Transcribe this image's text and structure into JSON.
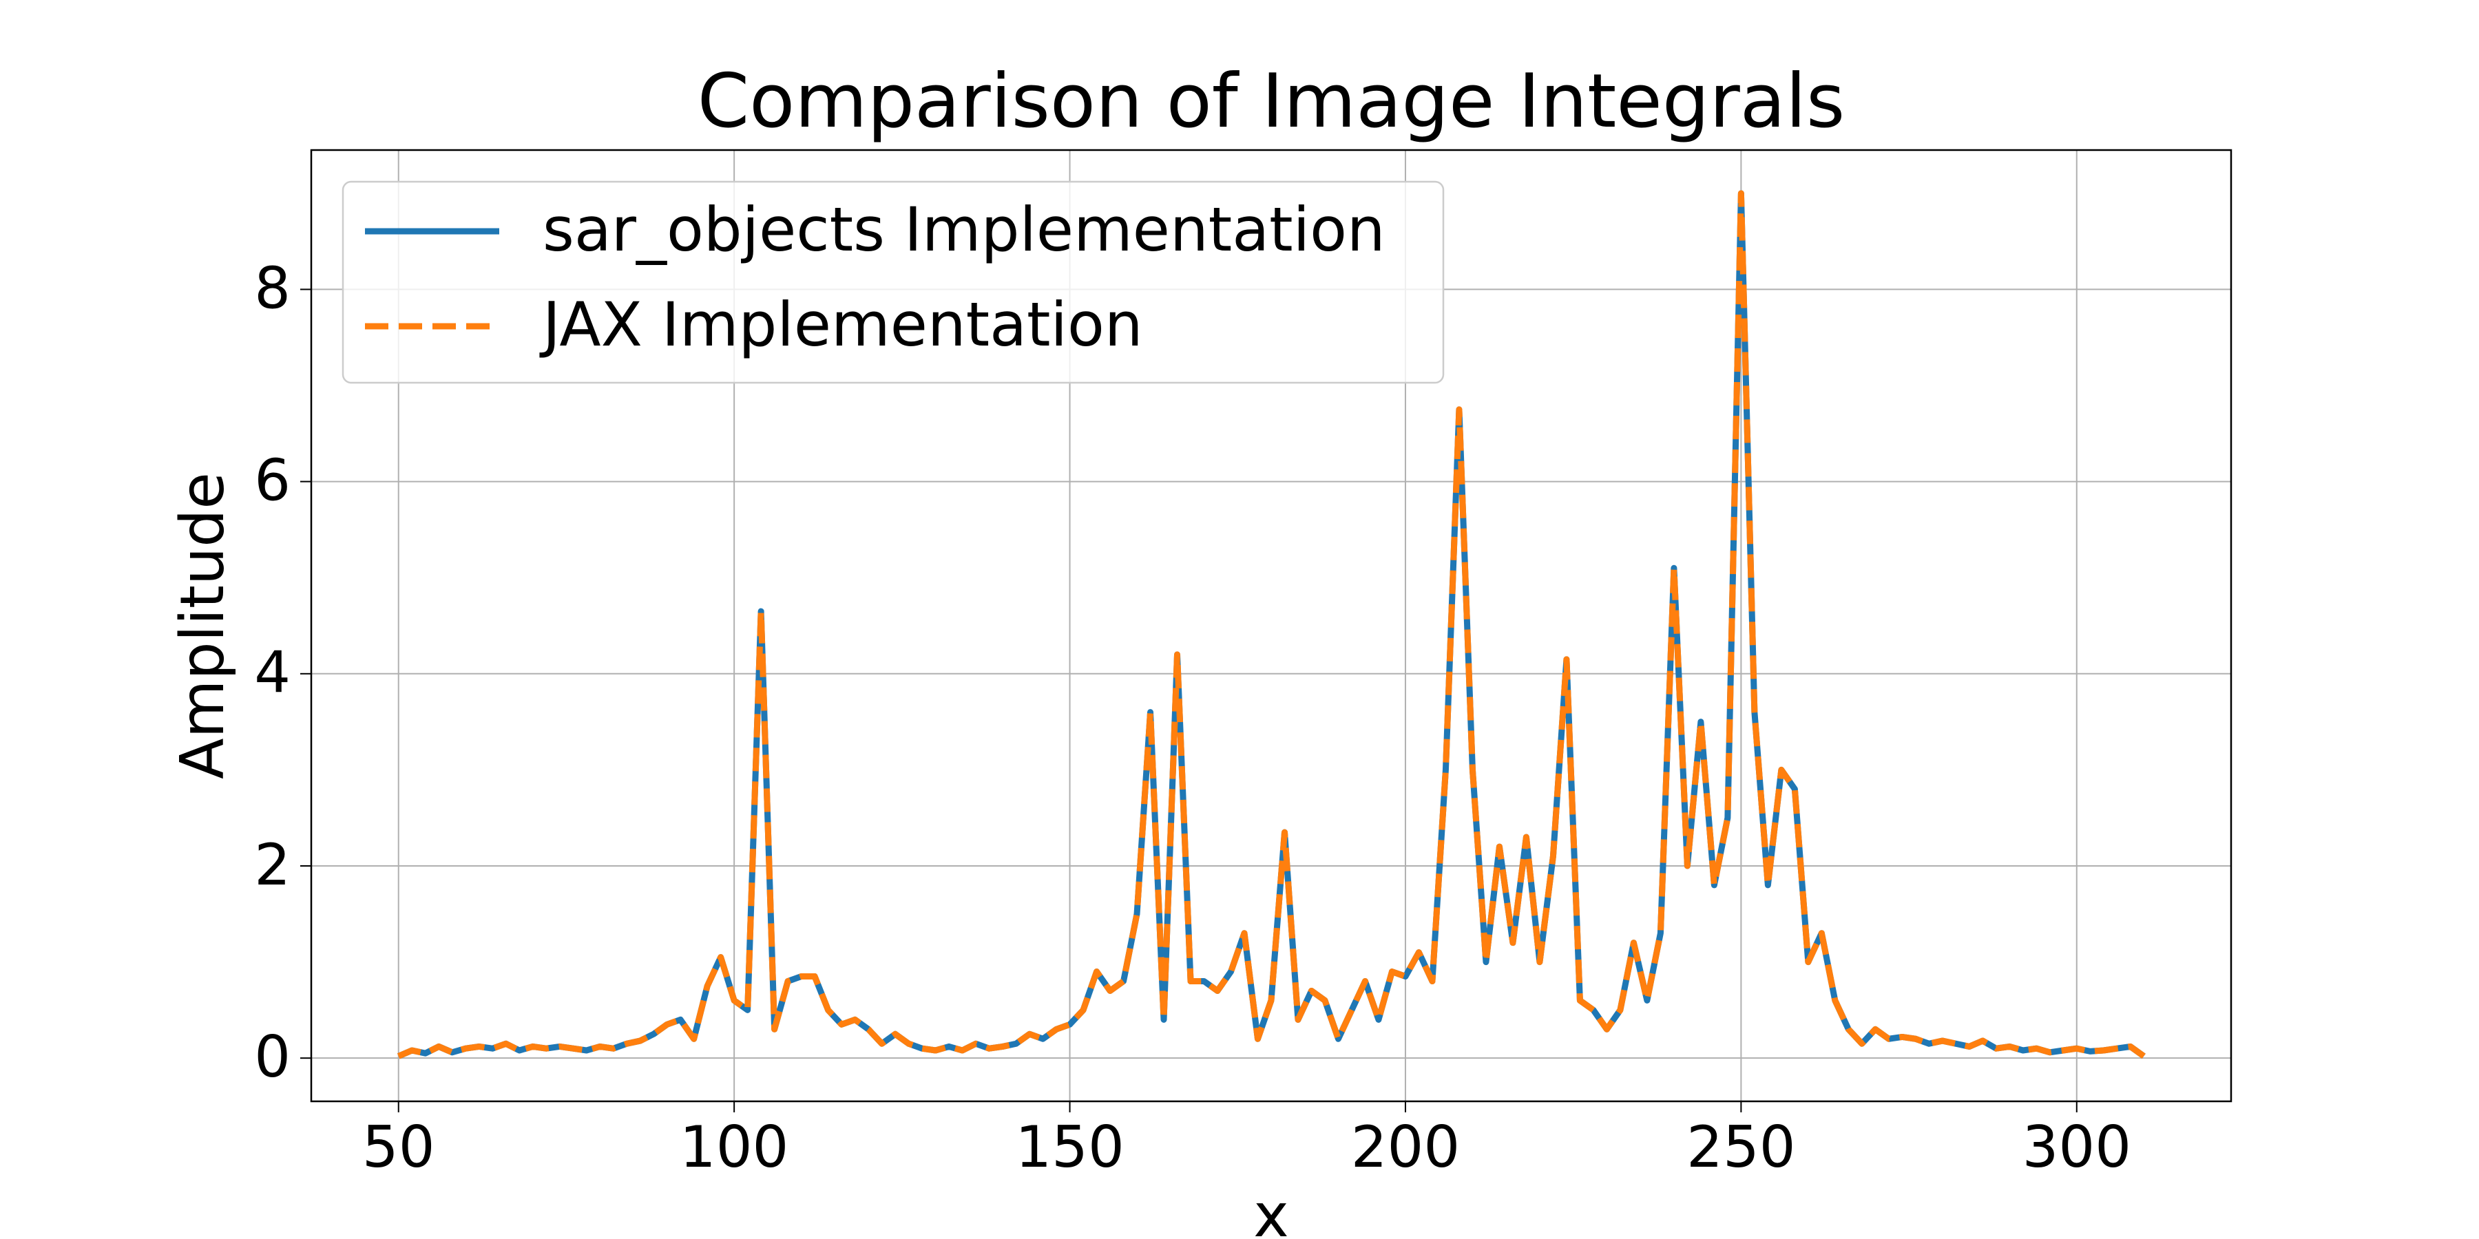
{
  "chart_data": {
    "type": "line",
    "title": "Comparison of Image Integrals",
    "xlabel": "x",
    "ylabel": "Amplitude",
    "x": [
      50,
      52,
      54,
      56,
      58,
      60,
      62,
      64,
      66,
      68,
      70,
      72,
      74,
      76,
      78,
      80,
      82,
      84,
      86,
      88,
      90,
      92,
      94,
      96,
      98,
      100,
      102,
      104,
      106,
      108,
      110,
      112,
      114,
      116,
      118,
      120,
      122,
      124,
      126,
      128,
      130,
      132,
      134,
      136,
      138,
      140,
      142,
      144,
      146,
      148,
      150,
      152,
      154,
      156,
      158,
      160,
      162,
      164,
      166,
      168,
      170,
      172,
      174,
      176,
      178,
      180,
      182,
      184,
      186,
      188,
      190,
      192,
      194,
      196,
      198,
      200,
      202,
      204,
      206,
      208,
      210,
      212,
      214,
      216,
      218,
      220,
      222,
      224,
      226,
      228,
      230,
      232,
      234,
      236,
      238,
      240,
      242,
      244,
      246,
      248,
      250,
      252,
      254,
      256,
      258,
      260,
      262,
      264,
      266,
      268,
      270,
      272,
      274,
      276,
      278,
      280,
      282,
      284,
      286,
      288,
      290,
      292,
      294,
      296,
      298,
      300,
      302,
      304,
      306,
      308,
      310
    ],
    "series": [
      {
        "name": "sar_objects Implementation",
        "color": "#1f77b4",
        "dashed": false,
        "values": [
          0.02,
          0.08,
          0.05,
          0.12,
          0.06,
          0.1,
          0.12,
          0.1,
          0.15,
          0.08,
          0.12,
          0.1,
          0.12,
          0.1,
          0.08,
          0.12,
          0.1,
          0.15,
          0.18,
          0.25,
          0.35,
          0.4,
          0.2,
          0.75,
          1.05,
          0.6,
          0.5,
          4.65,
          0.3,
          0.8,
          0.85,
          0.85,
          0.5,
          0.35,
          0.4,
          0.3,
          0.15,
          0.25,
          0.15,
          0.1,
          0.08,
          0.12,
          0.08,
          0.15,
          0.1,
          0.12,
          0.15,
          0.25,
          0.2,
          0.3,
          0.35,
          0.5,
          0.9,
          0.7,
          0.8,
          1.5,
          3.6,
          0.4,
          4.2,
          0.8,
          0.8,
          0.7,
          0.9,
          1.3,
          0.2,
          0.6,
          2.35,
          0.4,
          0.7,
          0.6,
          0.2,
          0.5,
          0.8,
          0.4,
          0.9,
          0.85,
          1.1,
          0.8,
          3.0,
          6.75,
          3.0,
          1.0,
          2.2,
          1.2,
          2.3,
          1.0,
          2.1,
          4.15,
          0.6,
          0.5,
          0.3,
          0.5,
          1.2,
          0.6,
          1.3,
          5.1,
          2.0,
          3.5,
          1.8,
          2.5,
          9.0,
          3.6,
          1.8,
          3.0,
          2.8,
          1.0,
          1.3,
          0.6,
          0.3,
          0.15,
          0.3,
          0.2,
          0.22,
          0.2,
          0.15,
          0.18,
          0.15,
          0.12,
          0.18,
          0.1,
          0.12,
          0.08,
          0.1,
          0.06,
          0.08,
          0.1,
          0.07,
          0.08,
          0.1,
          0.12,
          0.02
        ]
      },
      {
        "name": "JAX Implementation",
        "color": "#ff7f0e",
        "dashed": true,
        "values": [
          0.02,
          0.08,
          0.05,
          0.12,
          0.06,
          0.1,
          0.12,
          0.1,
          0.15,
          0.08,
          0.12,
          0.1,
          0.12,
          0.1,
          0.08,
          0.12,
          0.1,
          0.15,
          0.18,
          0.25,
          0.35,
          0.4,
          0.2,
          0.75,
          1.05,
          0.6,
          0.5,
          4.65,
          0.3,
          0.8,
          0.85,
          0.85,
          0.5,
          0.35,
          0.4,
          0.3,
          0.15,
          0.25,
          0.15,
          0.1,
          0.08,
          0.12,
          0.08,
          0.15,
          0.1,
          0.12,
          0.15,
          0.25,
          0.2,
          0.3,
          0.35,
          0.5,
          0.9,
          0.7,
          0.8,
          1.5,
          3.6,
          0.4,
          4.2,
          0.8,
          0.8,
          0.7,
          0.9,
          1.3,
          0.2,
          0.6,
          2.35,
          0.4,
          0.7,
          0.6,
          0.2,
          0.5,
          0.8,
          0.4,
          0.9,
          0.85,
          1.1,
          0.8,
          3.0,
          6.75,
          3.0,
          1.0,
          2.2,
          1.2,
          2.3,
          1.0,
          2.1,
          4.15,
          0.6,
          0.5,
          0.3,
          0.5,
          1.2,
          0.6,
          1.3,
          5.1,
          2.0,
          3.5,
          1.8,
          2.5,
          9.0,
          3.6,
          1.8,
          3.0,
          2.8,
          1.0,
          1.3,
          0.6,
          0.3,
          0.15,
          0.3,
          0.2,
          0.22,
          0.2,
          0.15,
          0.18,
          0.15,
          0.12,
          0.18,
          0.1,
          0.12,
          0.08,
          0.1,
          0.06,
          0.08,
          0.1,
          0.07,
          0.08,
          0.1,
          0.12,
          0.02
        ]
      }
    ],
    "xlim": [
      37,
      323
    ],
    "ylim": [
      -0.45,
      9.45
    ],
    "xticks": [
      50,
      100,
      150,
      200,
      250,
      300
    ],
    "yticks": [
      0,
      2,
      4,
      6,
      8
    ],
    "grid": true,
    "legend": "upper left"
  }
}
